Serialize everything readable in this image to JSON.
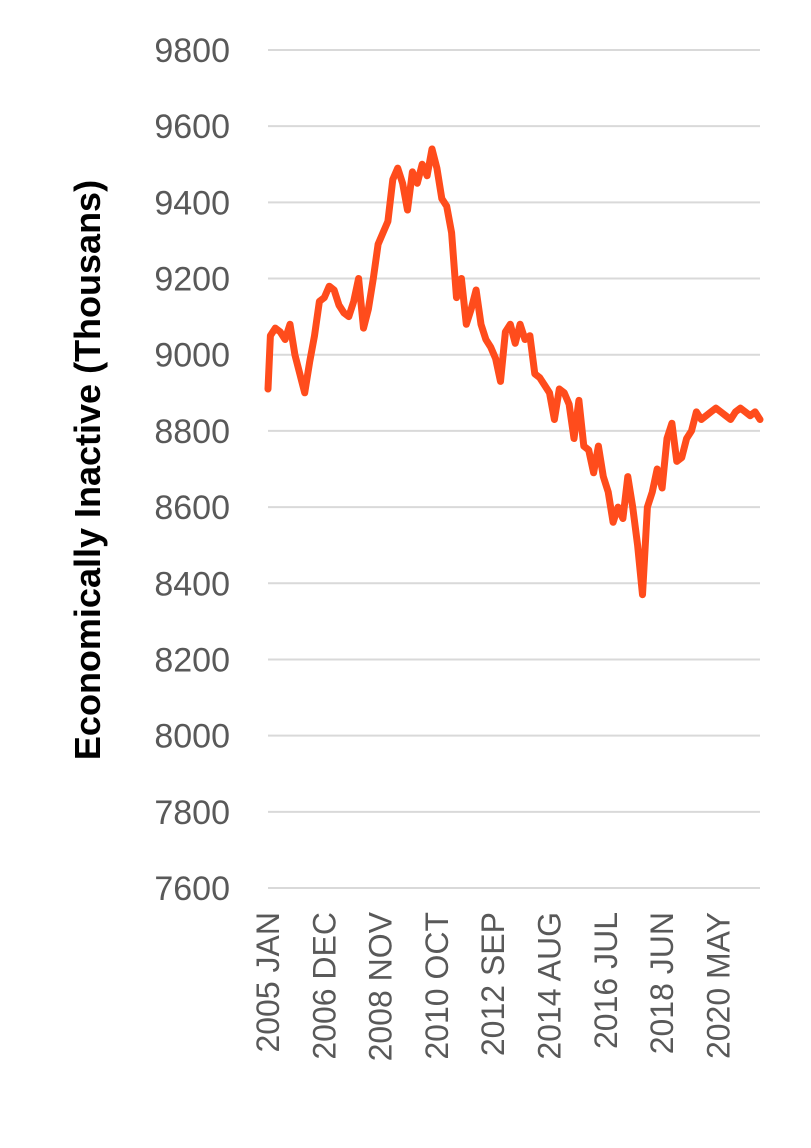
{
  "chart_data": {
    "type": "line",
    "title": "",
    "xlabel": "",
    "ylabel": "Economically Inactive (Thousans)",
    "ylim": [
      7600,
      9800
    ],
    "yticks": [
      "7600",
      "7800",
      "8000",
      "8200",
      "8400",
      "8600",
      "8800",
      "9000",
      "9200",
      "9400",
      "9600",
      "9800"
    ],
    "xtick_labels": [
      "2005 JAN",
      "2006 DEC",
      "2008 NOV",
      "2010 OCT",
      "2012 SEP",
      "2014 AUG",
      "2016 JUL",
      "2018 JUN",
      "2020 MAY"
    ],
    "grid": true,
    "series_color": "#ff4c1c",
    "grid_color": "#d9d9d9",
    "x": [
      "2005-01",
      "2005-02",
      "2005-04",
      "2005-06",
      "2005-08",
      "2005-10",
      "2005-12",
      "2006-02",
      "2006-04",
      "2006-06",
      "2006-08",
      "2006-10",
      "2006-12",
      "2007-02",
      "2007-04",
      "2007-06",
      "2007-08",
      "2007-10",
      "2007-12",
      "2008-02",
      "2008-04",
      "2008-06",
      "2008-08",
      "2008-10",
      "2008-12",
      "2009-02",
      "2009-04",
      "2009-06",
      "2009-08",
      "2009-10",
      "2009-12",
      "2010-02",
      "2010-04",
      "2010-06",
      "2010-08",
      "2010-10",
      "2010-12",
      "2011-02",
      "2011-04",
      "2011-06",
      "2011-08",
      "2011-10",
      "2011-12",
      "2012-02",
      "2012-04",
      "2012-06",
      "2012-08",
      "2012-10",
      "2012-12",
      "2013-02",
      "2013-04",
      "2013-06",
      "2013-08",
      "2013-10",
      "2013-12",
      "2014-02",
      "2014-04",
      "2014-06",
      "2014-08",
      "2014-10",
      "2014-12",
      "2015-02",
      "2015-04",
      "2015-06",
      "2015-08",
      "2015-10",
      "2015-12",
      "2016-02",
      "2016-04",
      "2016-06",
      "2016-08",
      "2016-10",
      "2016-12",
      "2017-02",
      "2017-04",
      "2017-06",
      "2017-08",
      "2017-10",
      "2017-12",
      "2018-02",
      "2018-04",
      "2018-06",
      "2018-08",
      "2018-10",
      "2018-12",
      "2019-02",
      "2019-04",
      "2019-06",
      "2019-08",
      "2019-10",
      "2019-12",
      "2020-02",
      "2020-04",
      "2020-06",
      "2020-08",
      "2020-10",
      "2020-12",
      "2021-02",
      "2021-04",
      "2021-06",
      "2021-08",
      "2021-10"
    ],
    "series": [
      {
        "values": [
          8910,
          9050,
          9070,
          9060,
          9040,
          9080,
          9000,
          8950,
          8900,
          8980,
          9050,
          9140,
          9150,
          9180,
          9170,
          9130,
          9110,
          9100,
          9140,
          9200,
          9070,
          9120,
          9200,
          9290,
          9320,
          9350,
          9460,
          9490,
          9450,
          9380,
          9480,
          9450,
          9500,
          9470,
          9540,
          9490,
          9410,
          9390,
          9320,
          9150,
          9200,
          9080,
          9120,
          9170,
          9080,
          9040,
          9020,
          8990,
          8930,
          9060,
          9080,
          9030,
          9080,
          9040,
          9050,
          8950,
          8940,
          8920,
          8900,
          8830,
          8910,
          8900,
          8870,
          8780,
          8880,
          8760,
          8750,
          8690,
          8760,
          8680,
          8640,
          8560,
          8600,
          8570,
          8680,
          8600,
          8500,
          8370,
          8600,
          8640,
          8700,
          8650,
          8780,
          8820,
          8720,
          8730,
          8780,
          8800,
          8850,
          8830,
          8840,
          8850,
          8860,
          8850,
          8840,
          8830,
          8850,
          8860,
          8850,
          8840,
          8850,
          8830
        ]
      }
    ]
  }
}
